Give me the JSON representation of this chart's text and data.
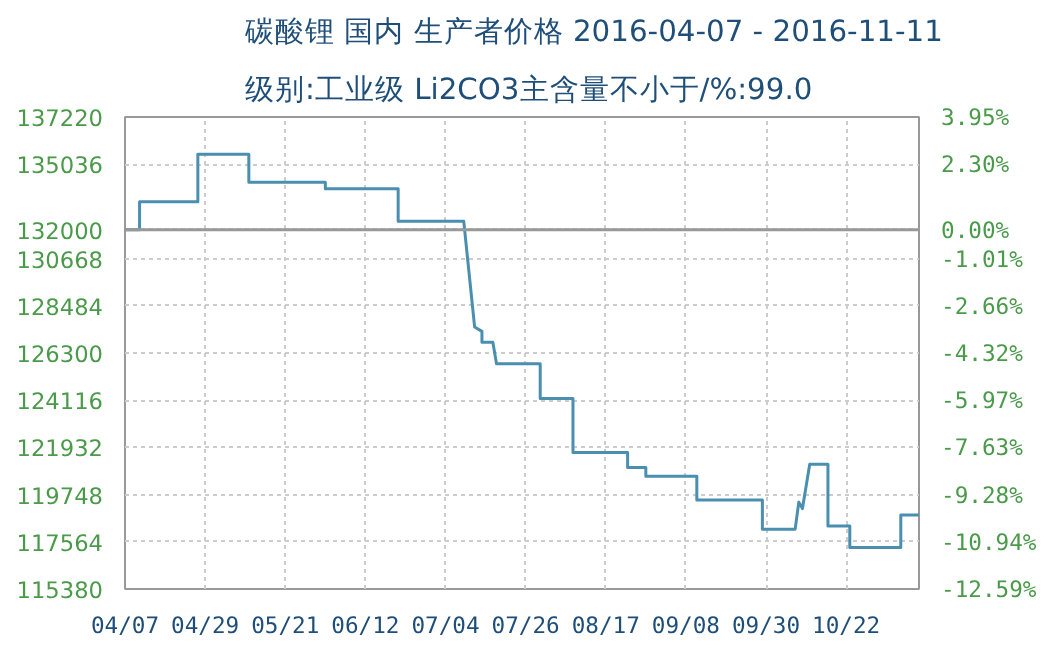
{
  "chart_data": {
    "type": "line",
    "title": "碳酸锂 国内 生产者价格 2016-04-07 - 2016-11-11",
    "subtitle": "级别:工业级 Li2CO3主含量不小于/%:99.0",
    "x": [
      "2016-04-07",
      "2016-04-11",
      "2016-04-11",
      "2016-04-27",
      "2016-04-27",
      "2016-05-11",
      "2016-05-11",
      "2016-06-01",
      "2016-06-01",
      "2016-06-21",
      "2016-06-21",
      "2016-07-09",
      "2016-07-12",
      "2016-07-14",
      "2016-07-14",
      "2016-07-17",
      "2016-07-18",
      "2016-07-30",
      "2016-07-30",
      "2016-08-08",
      "2016-08-08",
      "2016-08-23",
      "2016-08-23",
      "2016-08-28",
      "2016-08-28",
      "2016-09-11",
      "2016-09-11",
      "2016-09-29",
      "2016-09-29",
      "2016-10-08",
      "2016-10-09",
      "2016-10-10",
      "2016-10-12",
      "2016-10-17",
      "2016-10-17",
      "2016-10-23",
      "2016-10-23",
      "2016-11-06",
      "2016-11-06",
      "2016-11-11"
    ],
    "series": [
      {
        "color": "#4a8fb0",
        "values": [
          132000,
          132000,
          133300,
          133300,
          135500,
          135500,
          134200,
          134200,
          133900,
          133900,
          132400,
          132400,
          127500,
          127300,
          126800,
          126800,
          125800,
          125800,
          124200,
          124200,
          121700,
          121700,
          121000,
          121000,
          120600,
          120600,
          119500,
          119500,
          118150,
          118150,
          119400,
          119100,
          121150,
          121150,
          118300,
          118300,
          117300,
          117300,
          118800,
          118800
        ]
      }
    ],
    "xlim": [
      "2016-04-07",
      "2016-11-11"
    ],
    "xticks": [
      {
        "value": "2016-04-07",
        "label": "04/07"
      },
      {
        "value": "2016-04-29",
        "label": "04/29"
      },
      {
        "value": "2016-05-21",
        "label": "05/21"
      },
      {
        "value": "2016-06-12",
        "label": "06/12"
      },
      {
        "value": "2016-07-04",
        "label": "07/04"
      },
      {
        "value": "2016-07-26",
        "label": "07/26"
      },
      {
        "value": "2016-08-17",
        "label": "08/17"
      },
      {
        "value": "2016-09-08",
        "label": "09/08"
      },
      {
        "value": "2016-09-30",
        "label": "09/30"
      },
      {
        "value": "2016-10-22",
        "label": "10/22"
      }
    ],
    "ylim": [
      115380,
      137220
    ],
    "yticks": [
      115380,
      117564,
      119748,
      121932,
      124116,
      126300,
      128484,
      130668,
      132000,
      135036,
      137220
    ],
    "y2lim": [
      -12.59,
      3.95
    ],
    "y2ticks": [
      {
        "value": 3.95,
        "label": "3.95%"
      },
      {
        "value": 2.3,
        "label": "2.30%"
      },
      {
        "value": 0.0,
        "label": "0.00%"
      },
      {
        "value": -1.01,
        "label": "-1.01%"
      },
      {
        "value": -2.66,
        "label": "-2.66%"
      },
      {
        "value": -4.32,
        "label": "-4.32%"
      },
      {
        "value": -5.97,
        "label": "-5.97%"
      },
      {
        "value": -7.63,
        "label": "-7.63%"
      },
      {
        "value": -9.28,
        "label": "-9.28%"
      },
      {
        "value": -10.94,
        "label": "-10.94%"
      },
      {
        "value": -12.59,
        "label": "-12.59%"
      }
    ],
    "ref_lines": [
      {
        "axis": "y",
        "value": 132000,
        "color": "#999999",
        "line_style": "solid"
      }
    ],
    "grid": true,
    "marker": "none",
    "line_style": "solid"
  }
}
